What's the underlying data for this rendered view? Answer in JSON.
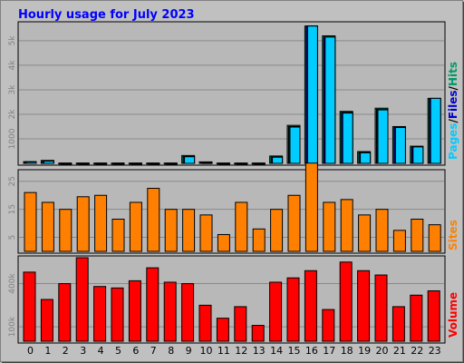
{
  "title": "Hourly usage for July 2023",
  "colors": {
    "background": "#c0c0c0",
    "plot_bg": "#b8b8b8",
    "title": "#0000ff",
    "pages": "#00ccff",
    "files": "#0000cc",
    "hits": "#009966",
    "sites": "#ff8000",
    "volume": "#ff0000"
  },
  "legend": {
    "pages": "Pages",
    "sep1": "/",
    "files": "Files",
    "sep2": "/",
    "hits": "Hits",
    "sites": "Sites",
    "volume": "Volume"
  },
  "chart_data": [
    {
      "type": "bar",
      "title": "Hourly usage for July 2023",
      "panel": "hits-files-pages",
      "categories": [
        "0",
        "1",
        "2",
        "3",
        "4",
        "5",
        "6",
        "7",
        "8",
        "9",
        "10",
        "11",
        "12",
        "13",
        "14",
        "15",
        "16",
        "17",
        "18",
        "19",
        "20",
        "21",
        "22",
        "23"
      ],
      "y_ticks": [
        {
          "value": 1000,
          "label": "1000"
        },
        {
          "value": 2000,
          "label": "2k"
        },
        {
          "value": 3000,
          "label": "3k"
        },
        {
          "value": 4000,
          "label": "4k"
        },
        {
          "value": 5000,
          "label": "5k"
        }
      ],
      "ylim": [
        0,
        5700
      ],
      "series": [
        {
          "name": "Hits",
          "values": [
            70,
            120,
            10,
            10,
            10,
            10,
            10,
            10,
            10,
            320,
            60,
            10,
            10,
            10,
            300,
            1550,
            5600,
            5200,
            2120,
            480,
            2250,
            1500,
            700,
            2650
          ]
        },
        {
          "name": "Files",
          "values": [
            60,
            100,
            8,
            8,
            8,
            8,
            8,
            8,
            8,
            280,
            40,
            8,
            8,
            8,
            260,
            1500,
            5600,
            5150,
            2080,
            450,
            2200,
            1480,
            680,
            2650
          ]
        },
        {
          "name": "Pages",
          "values": [
            55,
            90,
            5,
            5,
            5,
            5,
            5,
            5,
            5,
            270,
            30,
            5,
            5,
            5,
            250,
            1480,
            5600,
            5150,
            2050,
            430,
            2180,
            1460,
            670,
            2650
          ]
        }
      ]
    },
    {
      "type": "bar",
      "panel": "sites",
      "categories": [
        "0",
        "1",
        "2",
        "3",
        "4",
        "5",
        "6",
        "7",
        "8",
        "9",
        "10",
        "11",
        "12",
        "13",
        "14",
        "15",
        "16",
        "17",
        "18",
        "19",
        "20",
        "21",
        "22",
        "23"
      ],
      "y_ticks": [
        {
          "value": 5,
          "label": "5"
        },
        {
          "value": 15,
          "label": "15"
        },
        {
          "value": 25,
          "label": "25"
        }
      ],
      "ylim": [
        0,
        28.5
      ],
      "series": [
        {
          "name": "Sites",
          "values": [
            21,
            17.5,
            15,
            19.5,
            20,
            11.5,
            17.5,
            22.5,
            15,
            15,
            13,
            6,
            17.5,
            8,
            15,
            20,
            31.5,
            17.5,
            18.5,
            13,
            15,
            7.5,
            11.5,
            9.5
          ]
        }
      ]
    },
    {
      "type": "bar",
      "panel": "volume",
      "categories": [
        "0",
        "1",
        "2",
        "3",
        "4",
        "5",
        "6",
        "7",
        "8",
        "9",
        "10",
        "11",
        "12",
        "13",
        "14",
        "15",
        "16",
        "17",
        "18",
        "19",
        "20",
        "21",
        "22",
        "23"
      ],
      "y_ticks": [
        {
          "value": 100000,
          "label": "100k"
        },
        {
          "value": 400000,
          "label": "400k"
        }
      ],
      "ylim": [
        0,
        580000
      ],
      "series": [
        {
          "name": "Volume",
          "values": [
            480000,
            290000,
            400000,
            580000,
            380000,
            370000,
            420000,
            510000,
            410000,
            400000,
            250000,
            160000,
            240000,
            110000,
            410000,
            440000,
            490000,
            220000,
            550000,
            490000,
            460000,
            240000,
            320000,
            350000
          ]
        }
      ]
    }
  ]
}
